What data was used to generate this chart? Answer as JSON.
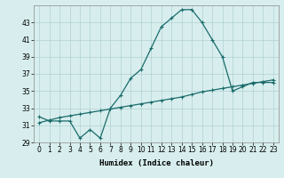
{
  "xlabel": "Humidex (Indice chaleur)",
  "bg_color": "#d8eeee",
  "line1_x": [
    0,
    1,
    2,
    3,
    4,
    5,
    6,
    7,
    8,
    9,
    10,
    11,
    12,
    13,
    14,
    15,
    16,
    17,
    18,
    19,
    20,
    21,
    22,
    23
  ],
  "line1_y": [
    32.0,
    31.5,
    31.5,
    31.5,
    29.5,
    30.5,
    29.5,
    33.0,
    34.5,
    36.5,
    37.5,
    40.0,
    42.5,
    43.5,
    44.5,
    44.5,
    43.0,
    41.0,
    39.0,
    35.0,
    35.5,
    36.0,
    36.0,
    36.0
  ],
  "line2_x": [
    0,
    1,
    2,
    3,
    4,
    5,
    6,
    7,
    8,
    9,
    10,
    11,
    12,
    13,
    14,
    15,
    16,
    17,
    18,
    19,
    20,
    21,
    22,
    23
  ],
  "line2_y": [
    31.3,
    31.6,
    31.9,
    32.1,
    32.3,
    32.5,
    32.7,
    32.9,
    33.1,
    33.3,
    33.5,
    33.7,
    33.9,
    34.1,
    34.3,
    34.6,
    34.9,
    35.1,
    35.3,
    35.5,
    35.7,
    35.9,
    36.1,
    36.3
  ],
  "line_color": "#1a6b6b",
  "marker": "+",
  "markersize": 3,
  "linewidth": 0.9,
  "markeredgewidth": 0.8,
  "ylim": [
    29,
    45
  ],
  "xlim": [
    -0.5,
    23.5
  ],
  "yticks": [
    29,
    31,
    33,
    35,
    37,
    39,
    41,
    43
  ],
  "xtick_labels": [
    "0",
    "1",
    "2",
    "3",
    "4",
    "5",
    "6",
    "7",
    "8",
    "9",
    "10",
    "11",
    "12",
    "13",
    "14",
    "15",
    "16",
    "17",
    "18",
    "19",
    "20",
    "21",
    "22",
    "23"
  ],
  "grid_color": "#b0d0d0",
  "tick_fontsize": 5.5,
  "xlabel_fontsize": 6.5
}
